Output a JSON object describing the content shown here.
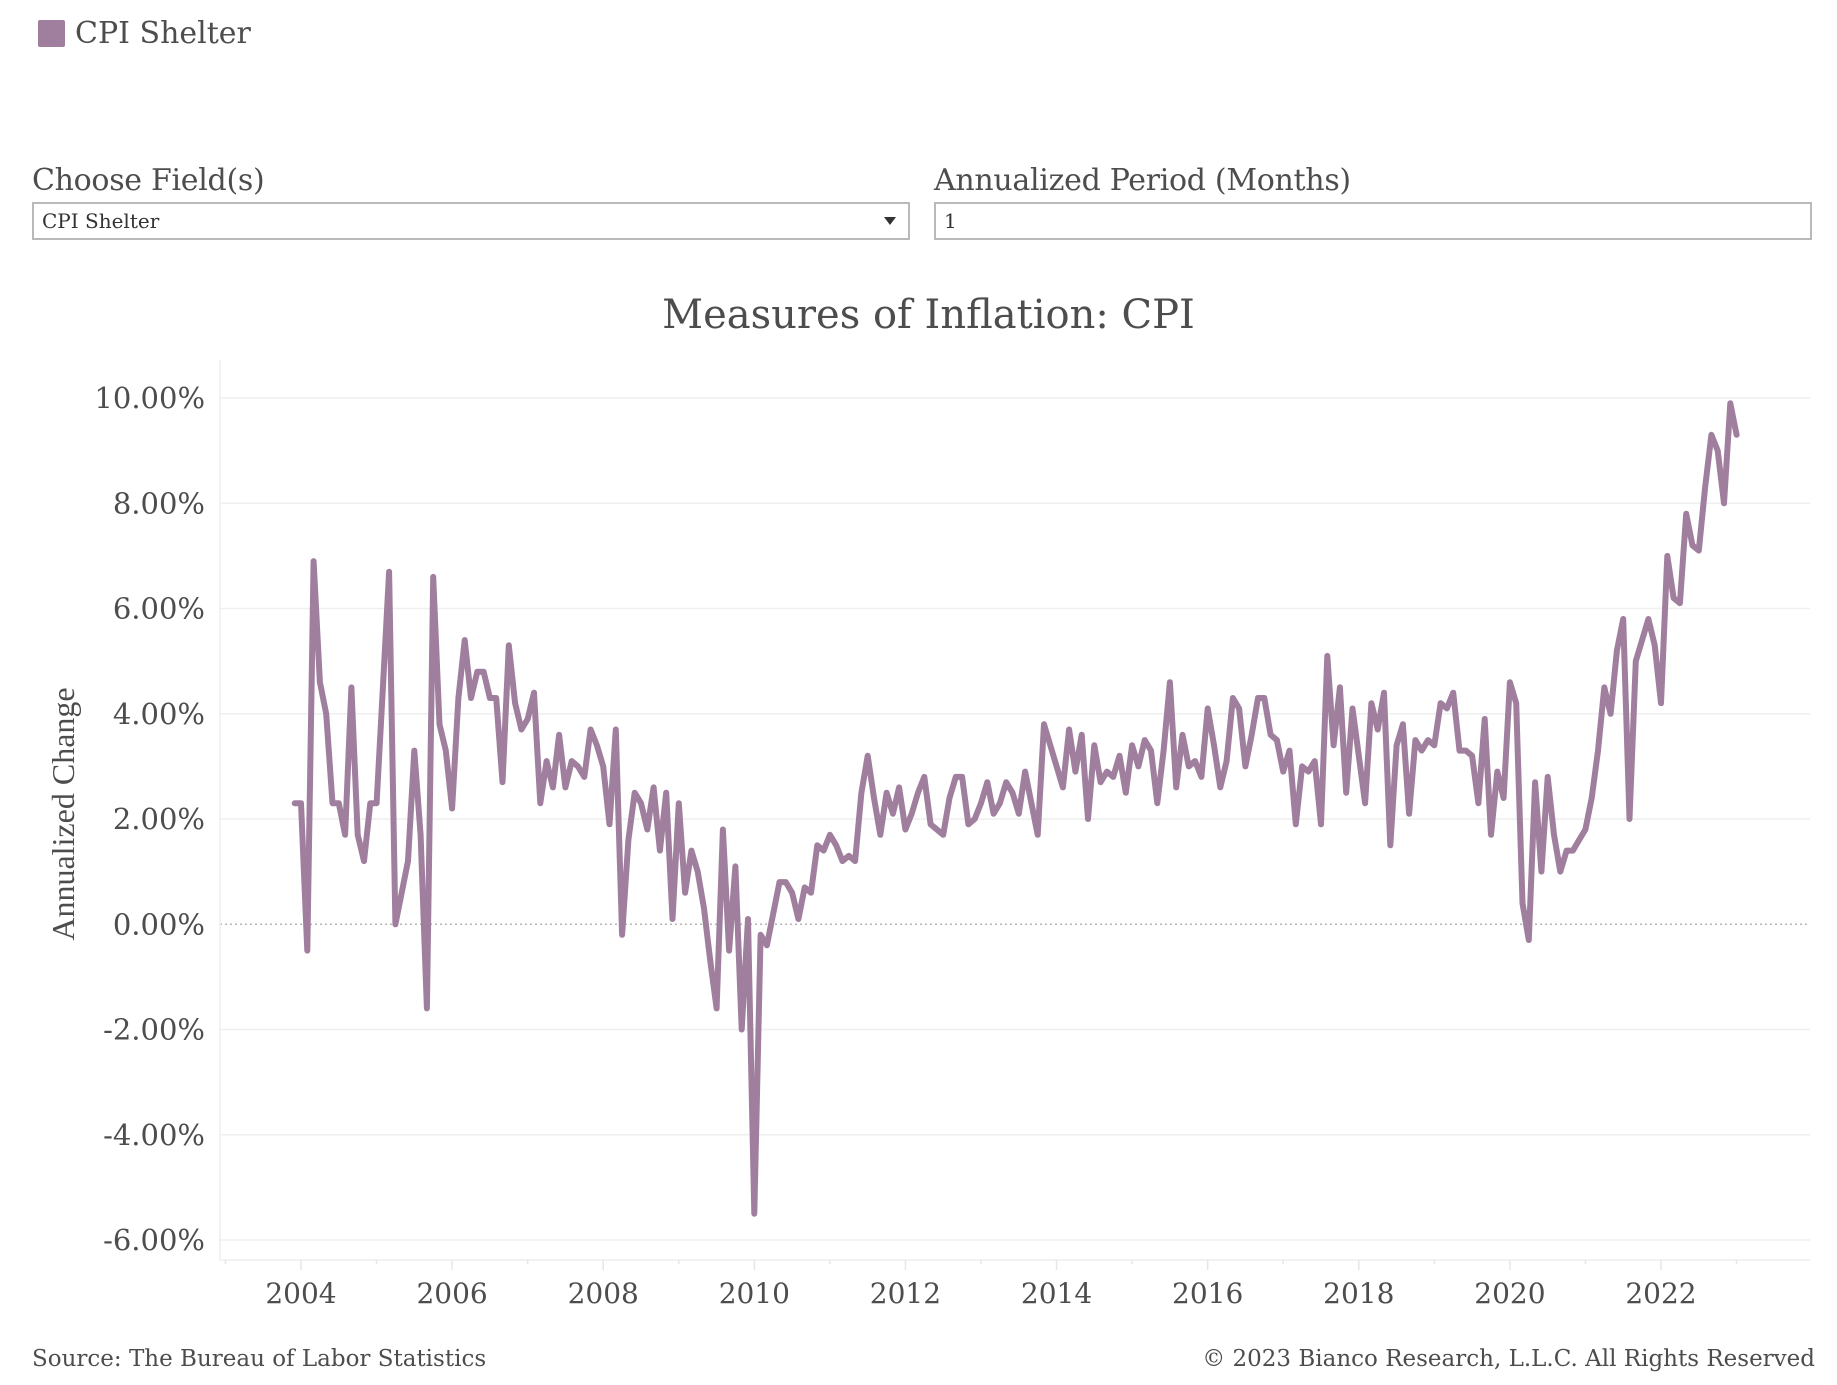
{
  "legend": {
    "label": "CPI Shelter",
    "color": "#a07f9e"
  },
  "controls": {
    "field": {
      "label": "Choose Field(s)",
      "value": "CPI Shelter",
      "icon": "caret-down-icon"
    },
    "period": {
      "label": "Annualized Period (Months)",
      "value": "1"
    }
  },
  "footer": {
    "source": "Source: The Bureau of Labor Statistics",
    "copyright": "© 2023 Bianco Research, L.L.C. All Rights Reserved"
  },
  "chart_data": {
    "type": "line",
    "title": "Measures of Inflation: CPI",
    "xlabel": "",
    "ylabel": "Annualized Change",
    "x_ticks": [
      "2004",
      "2006",
      "2008",
      "2010",
      "2012",
      "2014",
      "2016",
      "2018",
      "2020",
      "2022"
    ],
    "y_ticks": [
      "10.00%",
      "8.00%",
      "6.00%",
      "4.00%",
      "2.00%",
      "0.00%",
      "-2.00%",
      "-4.00%",
      "-6.00%"
    ],
    "ylim": [
      -6.4,
      10.7
    ],
    "xlim": [
      2003.0,
      2024.1
    ],
    "grid": true,
    "zero_line": "dotted",
    "legend_position": "top-left",
    "x_start": "2003-12",
    "x_step": "month",
    "series": [
      {
        "name": "CPI Shelter",
        "color": "#a07f9e",
        "values": [
          2.3,
          2.3,
          -0.5,
          6.9,
          4.6,
          4.0,
          2.3,
          2.3,
          1.7,
          4.5,
          1.7,
          1.2,
          2.3,
          2.3,
          4.5,
          6.7,
          0.0,
          0.6,
          1.2,
          3.3,
          1.7,
          -1.6,
          6.6,
          3.8,
          3.3,
          2.2,
          4.3,
          5.4,
          4.3,
          4.8,
          4.8,
          4.3,
          4.3,
          2.7,
          5.3,
          4.2,
          3.7,
          3.9,
          4.4,
          2.3,
          3.1,
          2.6,
          3.6,
          2.6,
          3.1,
          3.0,
          2.8,
          3.7,
          3.4,
          3.0,
          1.9,
          3.7,
          -0.2,
          1.6,
          2.5,
          2.3,
          1.8,
          2.6,
          1.4,
          2.5,
          0.1,
          2.3,
          0.6,
          1.4,
          1.0,
          0.3,
          -0.7,
          -1.6,
          1.8,
          -0.5,
          1.1,
          -2.0,
          0.1,
          -5.5,
          -0.2,
          -0.4,
          0.2,
          0.8,
          0.8,
          0.6,
          0.1,
          0.7,
          0.6,
          1.5,
          1.4,
          1.7,
          1.5,
          1.2,
          1.3,
          1.2,
          2.5,
          3.2,
          2.4,
          1.7,
          2.5,
          2.1,
          2.6,
          1.8,
          2.1,
          2.5,
          2.8,
          1.9,
          1.8,
          1.7,
          2.4,
          2.8,
          2.8,
          1.9,
          2.0,
          2.3,
          2.7,
          2.1,
          2.3,
          2.7,
          2.5,
          2.1,
          2.9,
          2.3,
          1.7,
          3.8,
          3.4,
          3.0,
          2.6,
          3.7,
          2.9,
          3.6,
          2.0,
          3.4,
          2.7,
          2.9,
          2.8,
          3.2,
          2.5,
          3.4,
          3.0,
          3.5,
          3.3,
          2.3,
          3.3,
          4.6,
          2.6,
          3.6,
          3.0,
          3.1,
          2.8,
          4.1,
          3.4,
          2.6,
          3.1,
          4.3,
          4.1,
          3.0,
          3.6,
          4.3,
          4.3,
          3.6,
          3.5,
          2.9,
          3.3,
          1.9,
          3.0,
          2.9,
          3.1,
          1.9,
          5.1,
          3.4,
          4.5,
          2.5,
          4.1,
          3.2,
          2.3,
          4.2,
          3.7,
          4.4,
          1.5,
          3.4,
          3.8,
          2.1,
          3.5,
          3.3,
          3.5,
          3.4,
          4.2,
          4.1,
          4.4,
          3.3,
          3.3,
          3.2,
          2.3,
          3.9,
          1.7,
          2.9,
          2.4,
          4.6,
          4.2,
          0.4,
          -0.3,
          2.7,
          1.0,
          2.8,
          1.7,
          1.0,
          1.4,
          1.4,
          1.6,
          1.8,
          2.4,
          3.3,
          4.5,
          4.0,
          5.2,
          5.8,
          2.0,
          5.0,
          5.4,
          5.8,
          5.3,
          4.2,
          7.0,
          6.2,
          6.1,
          7.8,
          7.2,
          7.1,
          8.3,
          9.3,
          9.0,
          8.0,
          9.9,
          9.3
        ]
      }
    ]
  }
}
